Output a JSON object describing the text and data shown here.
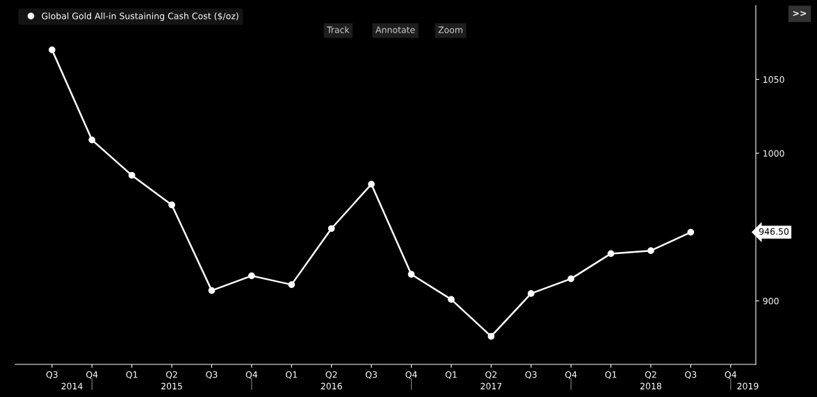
{
  "chart_data": {
    "type": "line",
    "categories": [
      "Q3",
      "Q4",
      "Q1",
      "Q2",
      "Q3",
      "Q4",
      "Q1",
      "Q2",
      "Q3",
      "Q4",
      "Q1",
      "Q2",
      "Q3",
      "Q4",
      "Q1",
      "Q2",
      "Q3",
      "Q4"
    ],
    "series": [
      {
        "name": "Global Gold All-in Sustaining Cash Cost ($/oz)",
        "color": "#ffffff",
        "values": [
          1070,
          1009,
          985,
          965,
          907,
          917,
          911,
          949,
          979,
          918,
          901,
          876,
          905,
          915,
          932,
          934,
          946.5,
          null
        ]
      }
    ],
    "ylim": [
      857,
      1100
    ],
    "yticks": [
      900,
      1000,
      1050
    ],
    "marker": "circle",
    "line_style": "solid",
    "grid": false,
    "legend": "top left",
    "annotations": [
      "946.50",
      "2014",
      "2015",
      "2016",
      "2017",
      "2018",
      "2019",
      "Track",
      "Annotate",
      "Zoom",
      ">>"
    ]
  }
}
